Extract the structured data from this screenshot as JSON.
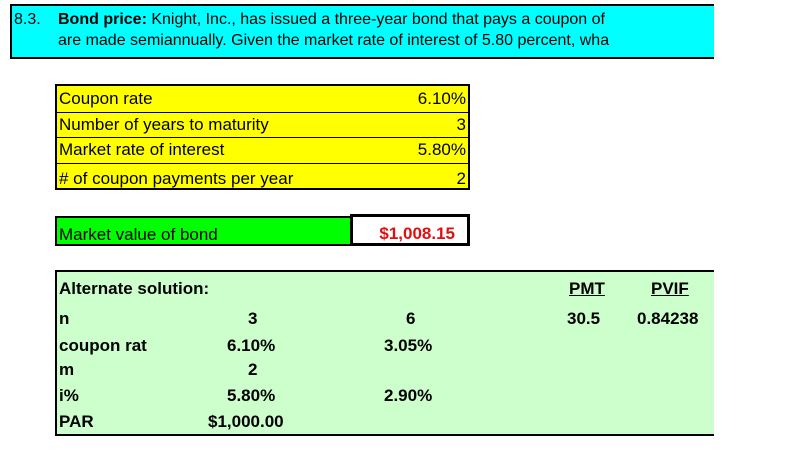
{
  "problem": {
    "number": "8.3.",
    "title": "Bond price:",
    "line1_rest": "Knight, Inc., has issued a three-year bond that pays a coupon of",
    "line2": "are made semiannually. Given the market rate of interest of 5.80 percent, wha"
  },
  "inputs": [
    {
      "label": "Coupon rate",
      "value": "6.10%"
    },
    {
      "label": "Number of years to maturity",
      "value": "3"
    },
    {
      "label": "Market rate of interest",
      "value": "5.80%"
    },
    {
      "label": "# of coupon payments per year",
      "value": "2"
    }
  ],
  "market_value": {
    "label": "Market value of bond",
    "value": "$1,008.15"
  },
  "alternate": {
    "title": "Alternate solution:",
    "pmt_header": "PMT",
    "pvif_header": "PVIF",
    "rows": [
      {
        "label": "n",
        "col1": "3",
        "col2": "6",
        "pmt": "30.5",
        "pvif": "0.84238"
      },
      {
        "label": "coupon rat",
        "col1": "6.10%",
        "col2": "3.05%"
      },
      {
        "label": "m",
        "col1": "2"
      },
      {
        "label": "i%",
        "col1": "5.80%",
        "col2": "2.90%"
      },
      {
        "label": "PAR",
        "col1": "$1,000.00"
      }
    ]
  },
  "colors": {
    "header_bg": "#00ffff",
    "inputs_bg": "#ffff00",
    "market_value_label_bg": "#00ff00",
    "market_value_text": "#e01010",
    "alternate_bg": "#ccffcc"
  }
}
